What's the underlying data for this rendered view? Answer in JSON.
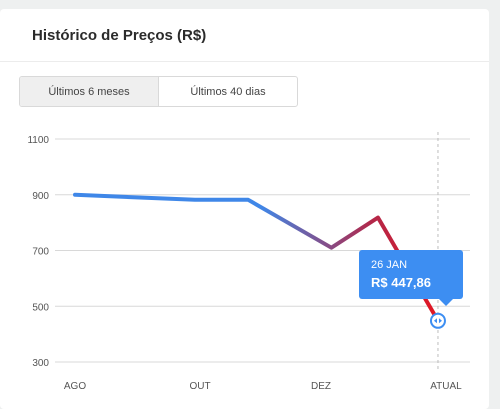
{
  "card": {
    "title": "Histórico de Preços (R$)"
  },
  "tabs": [
    {
      "label": "Últimos 6 meses",
      "active": true
    },
    {
      "label": "Últimos 40 dias",
      "active": false
    }
  ],
  "tooltip": {
    "date": "26 JAN",
    "value": "R$ 447,86"
  },
  "colors": {
    "line_start": "#3f87e8",
    "line_mid": "#b2284a",
    "line_end": "#e8141e",
    "accent": "#3d8ef2",
    "grid": "#d8d8d8"
  },
  "chart_data": {
    "type": "line",
    "title": "Histórico de Preços (R$)",
    "xlabel": "",
    "ylabel": "",
    "ylim": [
      300,
      1100
    ],
    "yticks": [
      300,
      500,
      700,
      900,
      1100
    ],
    "xticks": [
      "AGO",
      "OUT",
      "DEZ",
      "ATUAL"
    ],
    "x": [
      0,
      1.8,
      2.6,
      3.85,
      4.55,
      5.45
    ],
    "y": [
      900,
      882,
      882,
      710,
      818,
      447.86
    ],
    "grid": true,
    "legend": "none"
  }
}
